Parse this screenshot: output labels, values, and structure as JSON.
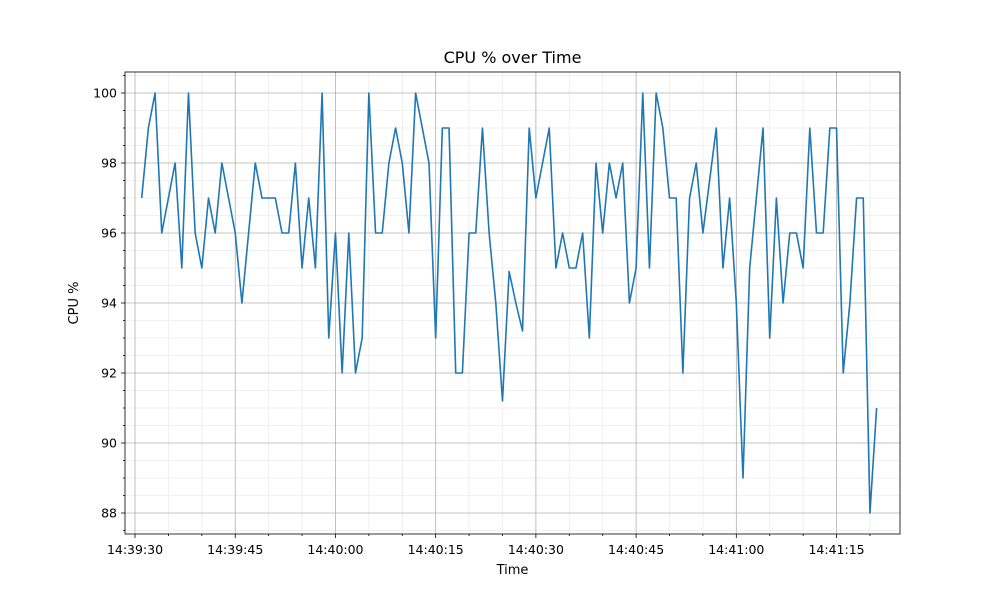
{
  "chart_data": {
    "type": "line",
    "title": "CPU % over Time",
    "xlabel": "Time",
    "ylabel": "CPU %",
    "x_start_time": "14:39:31",
    "x_step_seconds": 1,
    "xlim": [
      "14:39:28.5",
      "14:41:24.5"
    ],
    "ylim": [
      87.4,
      100.6
    ],
    "x_ticks": [
      "14:39:30",
      "14:39:45",
      "14:40:00",
      "14:40:15",
      "14:40:30",
      "14:40:45",
      "14:41:00",
      "14:41:15"
    ],
    "y_ticks": [
      88,
      90,
      92,
      94,
      96,
      98,
      100
    ],
    "grid": {
      "major": true,
      "minor": true
    },
    "series": [
      {
        "color": "#1f77b4",
        "values": [
          97,
          99,
          100,
          96,
          97,
          98,
          95,
          100,
          96,
          95,
          97,
          96,
          98,
          97,
          96,
          94,
          96,
          98,
          97,
          97,
          97,
          96,
          96,
          98,
          95,
          97,
          95,
          100,
          93,
          96,
          92,
          96,
          92,
          93,
          100,
          96,
          96,
          98,
          99,
          98,
          96,
          100,
          99,
          98,
          93,
          99,
          99,
          92,
          92,
          96,
          96,
          99,
          96,
          94,
          91.2,
          94.9,
          94,
          93.2,
          99,
          97,
          98,
          99,
          95,
          96,
          95,
          95,
          96,
          93,
          98,
          96,
          98,
          97,
          98,
          94,
          95,
          100,
          95,
          100,
          99,
          97,
          97,
          92,
          97,
          98,
          96,
          97.5,
          99,
          95,
          97,
          94,
          89,
          95,
          97,
          99,
          93,
          97,
          94,
          96,
          96,
          95,
          99,
          96,
          96,
          99,
          99,
          92,
          94,
          97,
          97,
          88,
          91
        ]
      }
    ]
  }
}
